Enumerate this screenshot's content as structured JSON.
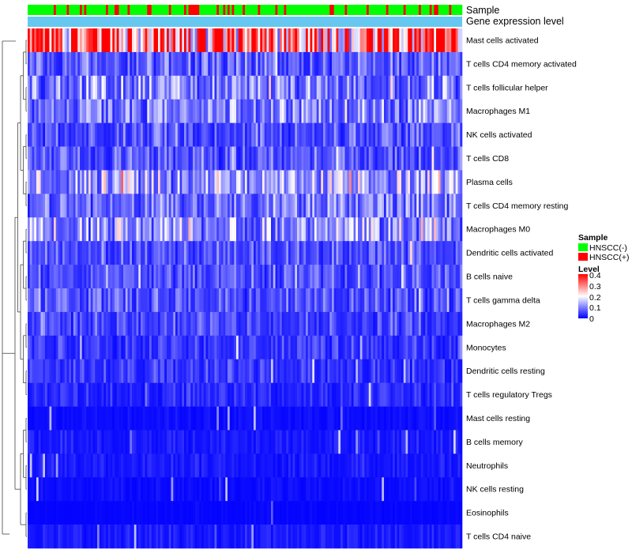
{
  "chart_data": {
    "type": "heatmap",
    "annotations": {
      "sample_label": "Sample",
      "gene_expression_label": "Gene expression level"
    },
    "rows": [
      "Mast cells activated",
      "T cells CD4 memory activated",
      "T cells follicular helper",
      "Macrophages M1",
      "NK cells activated",
      "T cells CD8",
      "Plasma cells",
      "T cells CD4 memory resting",
      "Macrophages M0",
      "Dendritic cells activated",
      "B cells naive",
      "T cells gamma delta",
      "Macrophages M2",
      "Monocytes",
      "Dendritic cells resting",
      "T cells regulatory  Tregs",
      "Mast cells resting",
      "B cells memory",
      "Neutrophils",
      "NK cells resting",
      "Eosinophils",
      "T cells CD4 naive"
    ],
    "row_mean_levels": [
      0.32,
      0.07,
      0.09,
      0.09,
      0.06,
      0.06,
      0.12,
      0.08,
      0.11,
      0.06,
      0.06,
      0.06,
      0.05,
      0.04,
      0.04,
      0.03,
      0.01,
      0.02,
      0.02,
      0.01,
      0.005,
      0.02
    ],
    "n_columns": 200,
    "sample_groups": [
      "HNSCC(-)",
      "HNSCC(+)"
    ],
    "scale_min": 0,
    "scale_max": 0.4,
    "legend": {
      "sample_title": "Sample",
      "sample_entries": [
        {
          "label": "HNSCC(-)",
          "color": "#00ff00"
        },
        {
          "label": "HNSCC(+)",
          "color": "#ff0000"
        }
      ],
      "level_title": "Level",
      "level_ticks": [
        "0.4",
        "0.3",
        "0.2",
        "0.1",
        "0"
      ]
    }
  },
  "colors": {
    "low": "#0000ff",
    "mid": "#ffffff",
    "high": "#ff0000",
    "gene_expression_bar": "#66c8f0",
    "group_negative": "#00ff00",
    "group_positive": "#ff0000"
  }
}
